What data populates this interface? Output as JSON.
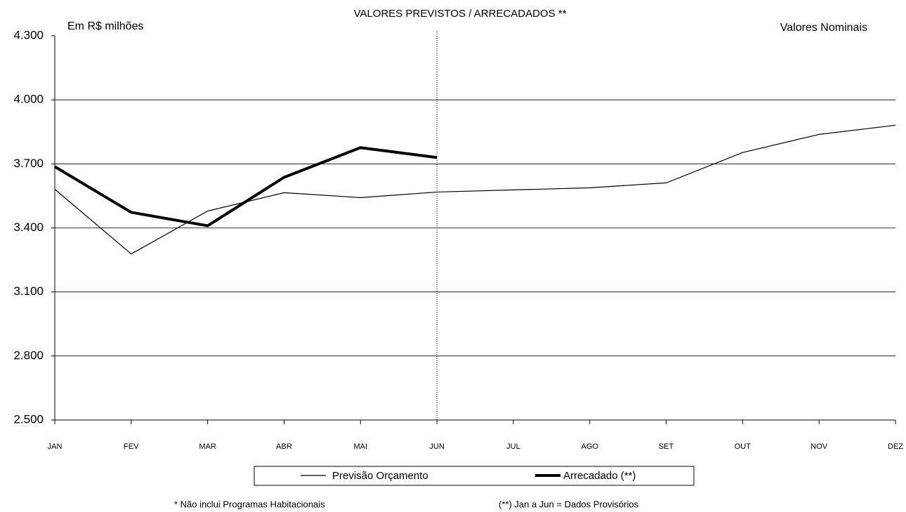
{
  "chart_data": {
    "type": "line",
    "title": "VALORES PREVISTOS / ARRECADADOS **",
    "y_label": "Em R$ milhões",
    "annotation_right": "Valores Nominais",
    "footnotes": [
      "* Não inclui Programas Habitacionais",
      "(**) Jan a Jun   = Dados  Provisórios"
    ],
    "categories": [
      "JAN",
      "FEV",
      "MAR",
      "ABR",
      "MAI",
      "JUN",
      "JUL",
      "AGO",
      "SET",
      "OUT",
      "NOV",
      "DEZ"
    ],
    "series": [
      {
        "name": "Previsão Orçamento",
        "color": "#000000",
        "width": 1.2,
        "values": [
          3581,
          3278,
          3479,
          3565,
          3542,
          3568,
          3578,
          3588,
          3611,
          3753,
          3838,
          3881
        ]
      },
      {
        "name": "Arrecadado (**)",
        "color": "#000000",
        "width": 4,
        "values": [
          3687,
          3473,
          3410,
          3637,
          3776,
          3730,
          null,
          null,
          null,
          null,
          null,
          null
        ]
      }
    ],
    "ylim": [
      2500,
      4300
    ],
    "yticks": [
      {
        "value": 2500,
        "label": "2.500"
      },
      {
        "value": 2800,
        "label": "2.800"
      },
      {
        "value": 3100,
        "label": "3.100"
      },
      {
        "value": 3400,
        "label": "3.400"
      },
      {
        "value": 3700,
        "label": "3.700"
      },
      {
        "value": 4000,
        "label": "4.000"
      },
      {
        "value": 4300,
        "label": "4.300"
      }
    ],
    "grid": true
  }
}
